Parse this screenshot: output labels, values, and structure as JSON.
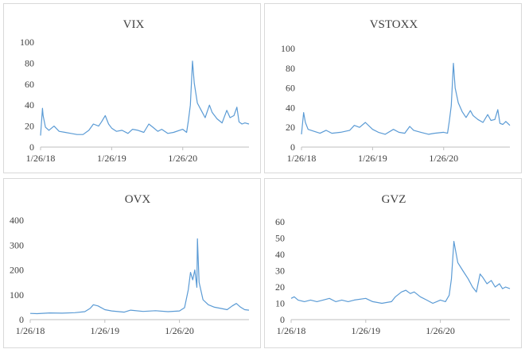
{
  "colors": {
    "line": "#5b9bd5",
    "axis": "#bfbfbf",
    "text": "#404040"
  },
  "chart_data": [
    {
      "type": "line",
      "title": "VIX",
      "x_tick_labels": [
        "1/26/18",
        "1/26/19",
        "1/26/20"
      ],
      "x_range": [
        "1/26/18",
        "12/31/20"
      ],
      "ylim": [
        0,
        100
      ],
      "y_ticks": [
        0,
        20,
        40,
        60,
        80,
        100
      ],
      "grid": false,
      "series": [
        {
          "dates": [
            "1/26/18",
            "2/5/18",
            "2/8/18",
            "2/20/18",
            "3/10/18",
            "4/5/18",
            "5/1/18",
            "6/1/18",
            "7/1/18",
            "8/1/18",
            "9/1/18",
            "10/1/18",
            "10/24/18",
            "11/20/18",
            "12/5/18",
            "12/24/18",
            "1/10/19",
            "1/26/19",
            "2/20/19",
            "3/20/19",
            "4/20/19",
            "5/13/19",
            "6/10/19",
            "7/10/19",
            "8/5/19",
            "8/25/19",
            "9/20/19",
            "10/10/19",
            "11/10/19",
            "12/10/19",
            "1/26/20",
            "2/15/20",
            "2/24/20",
            "3/5/20",
            "3/16/20",
            "3/25/20",
            "4/10/20",
            "4/30/20",
            "5/20/20",
            "6/11/20",
            "6/25/20",
            "7/20/20",
            "8/15/20",
            "9/8/20",
            "9/25/20",
            "10/15/20",
            "10/30/20",
            "11/10/20",
            "11/25/20",
            "12/10/20",
            "12/31/20"
          ],
          "values": [
            11,
            37,
            30,
            19,
            16,
            20,
            15,
            14,
            13,
            12,
            12,
            16,
            22,
            20,
            24,
            30,
            22,
            18,
            15,
            16,
            13,
            17,
            16,
            14,
            22,
            19,
            15,
            17,
            13,
            14,
            17,
            14,
            25,
            40,
            82,
            61,
            42,
            35,
            28,
            40,
            33,
            27,
            23,
            35,
            28,
            30,
            38,
            24,
            22,
            23,
            22
          ]
        }
      ]
    },
    {
      "type": "line",
      "title": "VSTOXX",
      "x_tick_labels": [
        "1/26/18",
        "1/26/19",
        "1/26/20"
      ],
      "x_range": [
        "1/26/18",
        "12/31/20"
      ],
      "ylim": [
        0,
        100
      ],
      "y_ticks": [
        0,
        20,
        40,
        60,
        80,
        100
      ],
      "grid": false,
      "series": [
        {
          "dates": [
            "1/26/18",
            "2/6/18",
            "2/15/18",
            "3/1/18",
            "4/1/18",
            "5/1/18",
            "6/1/18",
            "7/1/18",
            "8/15/18",
            "10/1/18",
            "10/24/18",
            "11/20/18",
            "12/20/18",
            "1/26/19",
            "2/25/19",
            "4/1/19",
            "5/13/19",
            "6/10/19",
            "7/10/19",
            "8/5/19",
            "8/25/19",
            "10/1/19",
            "11/10/19",
            "12/10/19",
            "1/26/20",
            "2/15/20",
            "2/24/20",
            "3/5/20",
            "3/16/20",
            "3/25/20",
            "4/10/20",
            "4/30/20",
            "5/20/20",
            "6/11/20",
            "6/25/20",
            "7/20/20",
            "8/15/20",
            "9/8/20",
            "9/25/20",
            "10/15/20",
            "10/30/20",
            "11/10/20",
            "11/25/20",
            "12/10/20",
            "12/31/20"
          ],
          "values": [
            13,
            35,
            25,
            18,
            16,
            14,
            17,
            14,
            15,
            17,
            22,
            20,
            25,
            18,
            15,
            13,
            18,
            15,
            14,
            21,
            17,
            15,
            13,
            14,
            15,
            14,
            26,
            42,
            85,
            60,
            45,
            36,
            30,
            37,
            32,
            28,
            25,
            33,
            27,
            28,
            38,
            24,
            23,
            26,
            22
          ]
        }
      ]
    },
    {
      "type": "line",
      "title": "OVX",
      "x_tick_labels": [
        "1/26/18",
        "1/26/19",
        "1/26/20"
      ],
      "x_range": [
        "1/26/18",
        "12/31/20"
      ],
      "ylim": [
        0,
        400
      ],
      "y_ticks": [
        0,
        100,
        200,
        300,
        400
      ],
      "grid": false,
      "series": [
        {
          "dates": [
            "1/26/18",
            "3/1/18",
            "5/1/18",
            "7/1/18",
            "9/1/18",
            "10/20/18",
            "11/15/18",
            "12/1/18",
            "12/24/18",
            "1/26/19",
            "3/1/19",
            "5/1/19",
            "6/1/19",
            "8/1/19",
            "10/1/19",
            "12/1/19",
            "1/26/20",
            "2/20/20",
            "3/9/20",
            "3/20/20",
            "3/31/20",
            "4/10/20",
            "4/20/20",
            "4/23/20",
            "5/1/20",
            "5/20/20",
            "6/15/20",
            "7/15/20",
            "8/15/20",
            "9/15/20",
            "10/10/20",
            "10/30/20",
            "11/20/20",
            "12/10/20",
            "12/31/20"
          ],
          "values": [
            25,
            24,
            27,
            26,
            28,
            32,
            45,
            60,
            55,
            40,
            35,
            30,
            38,
            33,
            36,
            32,
            35,
            48,
            120,
            190,
            160,
            200,
            130,
            325,
            150,
            80,
            60,
            50,
            45,
            40,
            55,
            65,
            50,
            40,
            38
          ]
        }
      ]
    },
    {
      "type": "line",
      "title": "GVZ",
      "x_tick_labels": [
        "1/26/18",
        "1/26/19",
        "1/26/20"
      ],
      "x_range": [
        "1/26/18",
        "12/31/20"
      ],
      "ylim": [
        0,
        60
      ],
      "y_ticks": [
        0,
        10,
        20,
        30,
        40,
        50,
        60
      ],
      "grid": false,
      "series": [
        {
          "dates": [
            "1/26/18",
            "2/10/18",
            "3/1/18",
            "4/1/18",
            "5/1/18",
            "6/1/18",
            "7/1/18",
            "8/1/18",
            "9/1/18",
            "10/1/18",
            "11/1/18",
            "12/1/18",
            "1/26/19",
            "3/1/19",
            "4/15/19",
            "6/1/19",
            "6/20/19",
            "7/20/19",
            "8/10/19",
            "9/1/19",
            "9/20/19",
            "10/20/19",
            "11/20/19",
            "12/20/19",
            "1/26/20",
            "2/20/20",
            "3/9/20",
            "3/20/20",
            "4/1/20",
            "4/20/20",
            "5/15/20",
            "6/10/20",
            "7/1/20",
            "7/20/20",
            "8/7/20",
            "8/20/20",
            "9/10/20",
            "10/1/20",
            "10/20/20",
            "11/10/20",
            "11/25/20",
            "12/10/20",
            "12/31/20"
          ],
          "values": [
            13,
            14,
            12,
            11,
            12,
            11,
            12,
            13,
            11,
            12,
            11,
            12,
            13,
            11,
            10,
            11,
            14,
            17,
            18,
            16,
            17,
            14,
            12,
            10,
            12,
            11,
            15,
            25,
            48,
            35,
            30,
            25,
            20,
            17,
            28,
            26,
            22,
            24,
            20,
            22,
            19,
            20,
            19
          ]
        }
      ]
    }
  ]
}
